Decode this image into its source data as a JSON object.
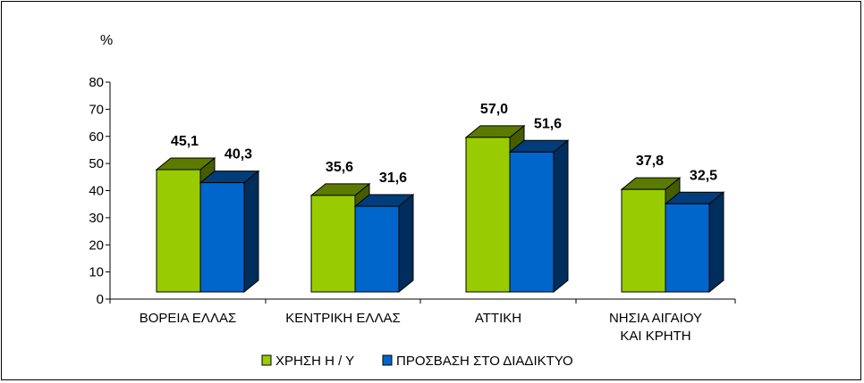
{
  "chart_data": {
    "type": "bar",
    "style": "3d-clustered",
    "unit_label": "%",
    "categories": [
      [
        "ΒΟΡΕΙΑ ΕΛΛΑΣ"
      ],
      [
        "ΚΕΝΤΡΙΚΗ ΕΛΛΑΣ"
      ],
      [
        "ΑΤΤΙΚΗ"
      ],
      [
        "ΝΗΣΙΑ ΑΙΓΑΙΟΥ",
        "ΚΑΙ ΚΡΗΤΗ"
      ]
    ],
    "series": [
      {
        "name": "ΧΡΗΣΗ Η / Υ",
        "values": [
          45.1,
          35.6,
          57.0,
          37.8
        ],
        "labels": [
          "45,1",
          "35,6",
          "57,0",
          "37,8"
        ],
        "color": "#99CC00"
      },
      {
        "name": "ΠΡΟΣΒΑΣΗ ΣΤΟ ΔΙΑΔΙΚΤΥΟ",
        "values": [
          40.3,
          31.6,
          51.6,
          32.5
        ],
        "labels": [
          "40,3",
          "31,6",
          "51,6",
          "32,5"
        ],
        "color": "#0066CC"
      }
    ],
    "ylim": [
      0,
      80
    ],
    "yticks": [
      0,
      10,
      20,
      30,
      40,
      50,
      60,
      70,
      80
    ],
    "grid": false,
    "legend_position": "bottom"
  }
}
